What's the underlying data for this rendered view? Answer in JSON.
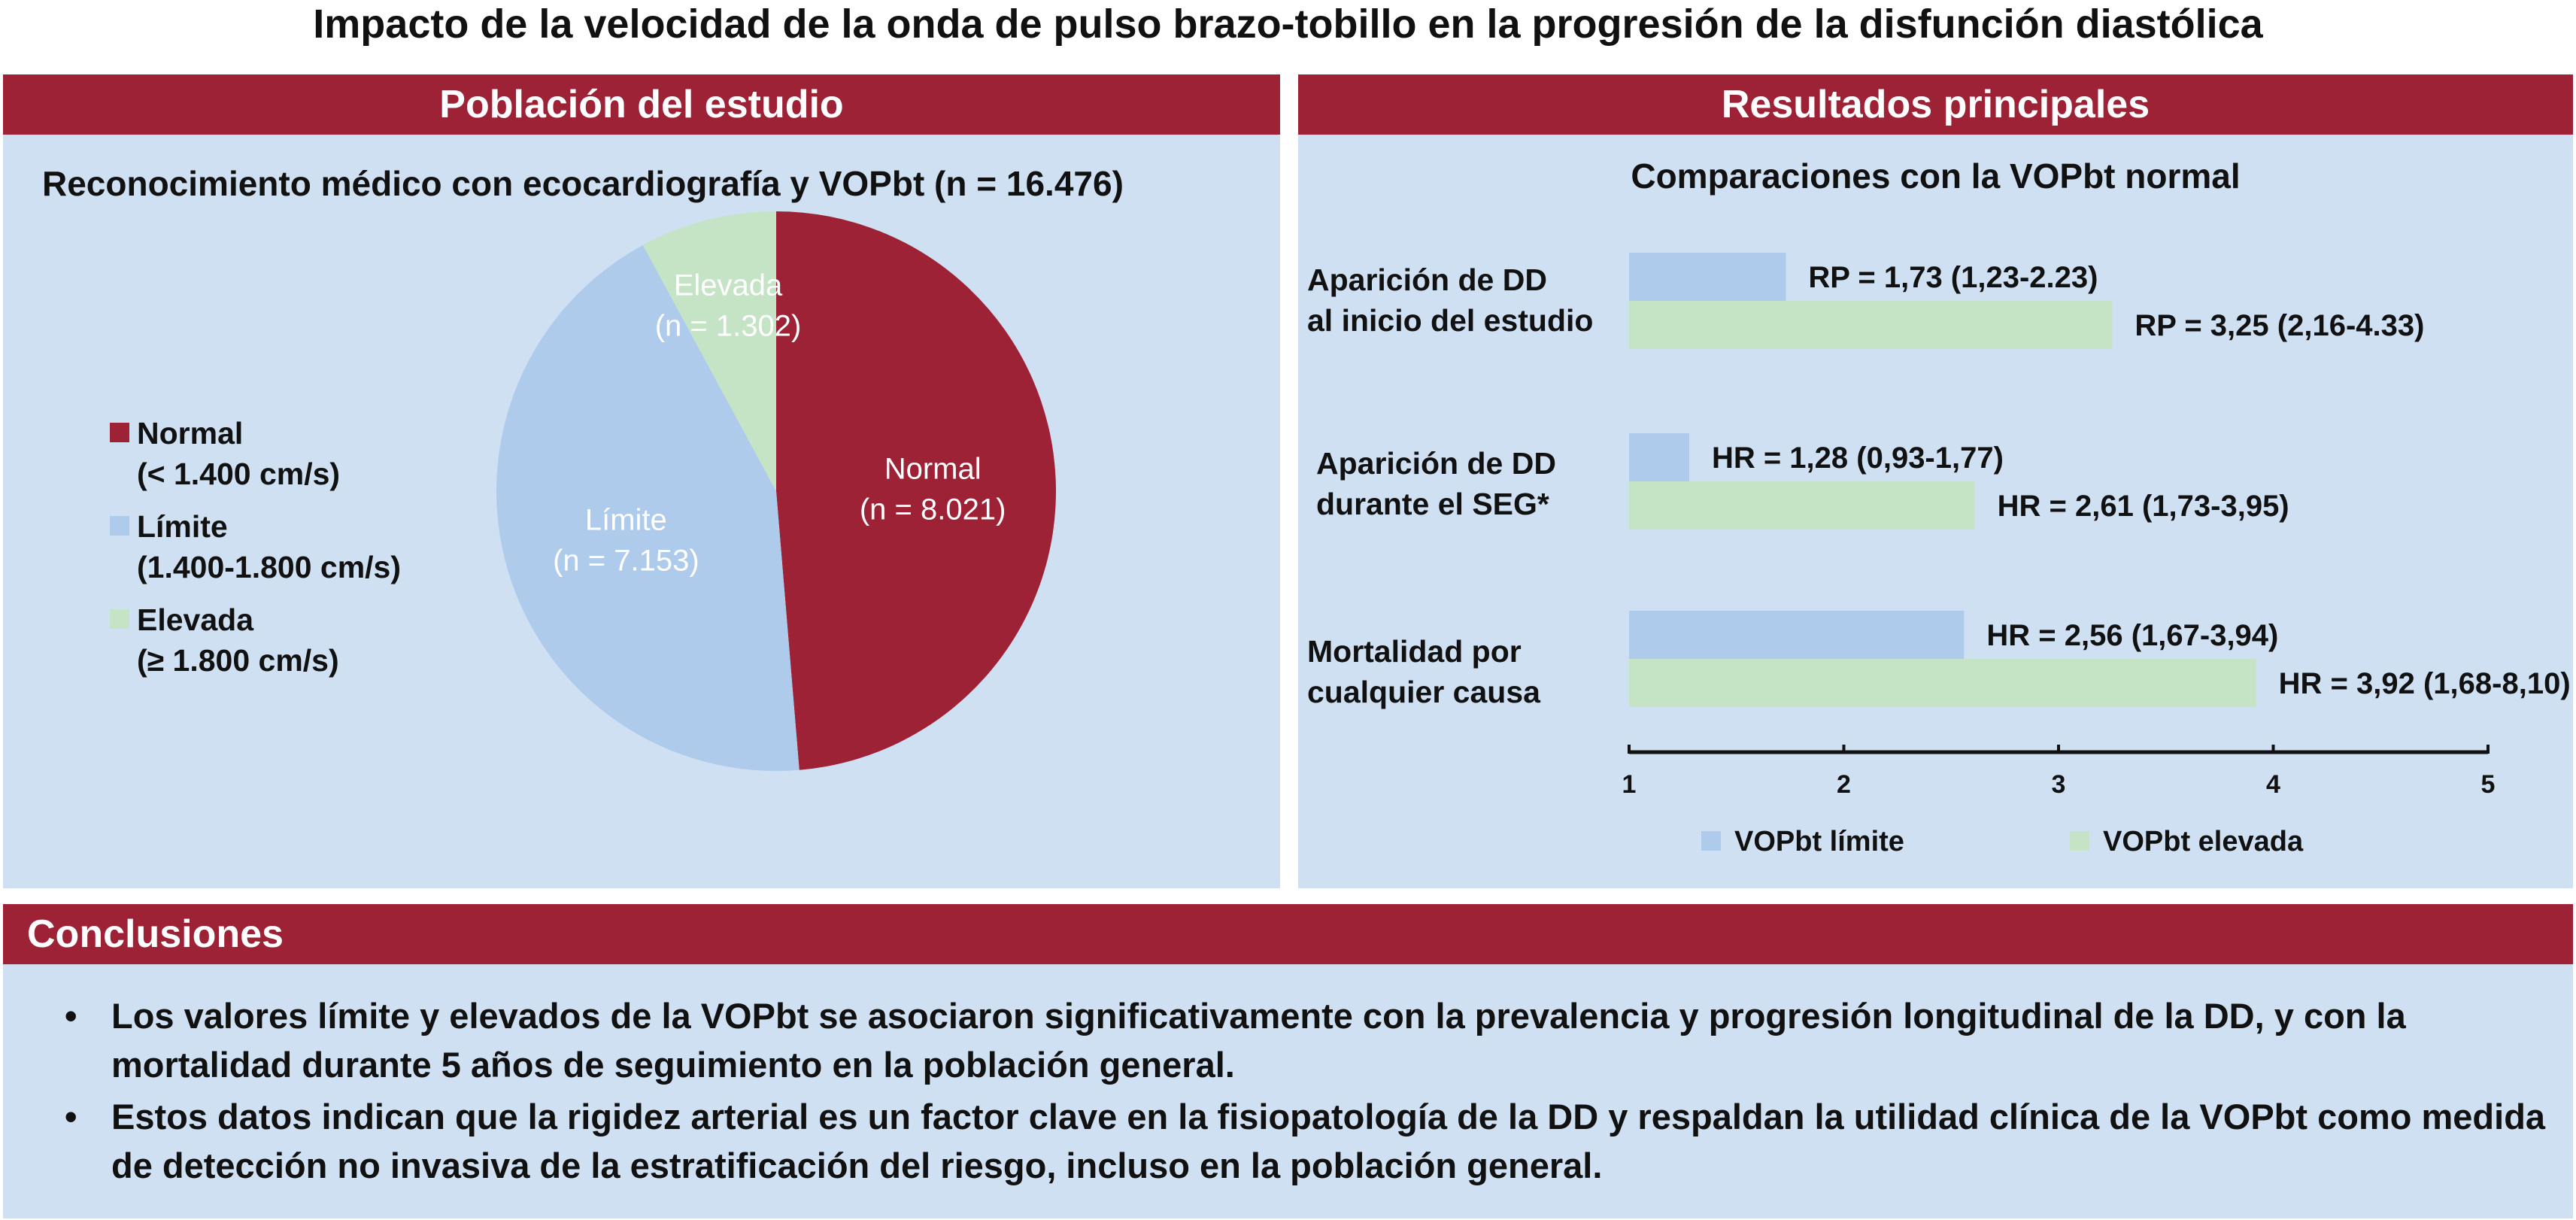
{
  "title": "Impacto de la velocidad de la onda de pulso brazo-tobillo en la progresión de la disfunción diastólica",
  "left_panel": {
    "header": "Población del estudio",
    "subtitle": "Reconocimiento médico con ecocardiografía y VOPbt (n = 16.476)",
    "legend": [
      {
        "line1": "Normal",
        "line2": "(< 1.400 cm/s)"
      },
      {
        "line1": "Límite",
        "line2": "(1.400-1.800 cm/s)"
      },
      {
        "line1": "Elevada",
        "line2": "(≥ 1.800 cm/s)"
      }
    ]
  },
  "right_panel": {
    "header": "Resultados principales",
    "subtitle": "Comparaciones con la VOPbt normal",
    "rows": [
      {
        "label1": "Aparición de DD",
        "label2": "al inicio del estudio"
      },
      {
        "label1": "Aparición de DD",
        "label2": "durante el SEG*"
      },
      {
        "label1": "Mortalidad por",
        "label2": "cualquier causa"
      }
    ],
    "legend": [
      "VOPbt límite",
      "VOPbt elevada"
    ]
  },
  "conclusions": {
    "header": "Conclusiones",
    "bullet_symbol": "•",
    "bullets": [
      "Los valores límite y elevados de la VOPbt se asociaron significativamente con la prevalencia y progresión longitudinal de la DD, y con la mortalidad durante 5 años de seguimiento en la población general.",
      "Estos datos indican que la rigidez arterial es un factor clave en la fisiopatología de la DD y respaldan la utilidad clínica de la VOPbt como medida de detección no invasiva de la estratificación del riesgo, incluso en la población general."
    ]
  },
  "chart_data": [
    {
      "type": "pie",
      "slices": [
        {
          "name": "Normal",
          "label": "Normal",
          "count_label": "(n = 8.021)",
          "value": 8021,
          "color": "#9d2236"
        },
        {
          "name": "Límite",
          "label": "Límite",
          "count_label": "(n = 7.153)",
          "value": 7153,
          "color": "#aecbeb"
        },
        {
          "name": "Elevada",
          "label": "Elevada",
          "count_label": "(n = 1.302)",
          "value": 1302,
          "color": "#c5e3c5"
        }
      ]
    },
    {
      "type": "bar",
      "orientation": "horizontal",
      "xlim": [
        1,
        5
      ],
      "ticks": [
        1,
        2,
        3,
        4,
        5
      ],
      "categories": [
        "Aparición de DD al inicio del estudio",
        "Aparición de DD durante el SEG*",
        "Mortalidad por cualquier causa"
      ],
      "series": [
        {
          "name": "VOPbt límite",
          "color": "#aecbeb",
          "values": [
            1.73,
            1.28,
            2.56
          ],
          "labels": [
            "RP = 1,73 (1,23-2.23)",
            "HR = 1,28 (0,93-1,77)",
            "HR = 2,56 (1,67-3,94)"
          ]
        },
        {
          "name": "VOPbt elevada",
          "color": "#c5e3c5",
          "values": [
            3.25,
            2.61,
            3.92
          ],
          "labels": [
            "RP = 3,25 (2,16-4.33)",
            "HR = 2,61 (1,73-3,95)",
            "HR = 3,92 (1,68-8,10)"
          ]
        }
      ]
    }
  ]
}
